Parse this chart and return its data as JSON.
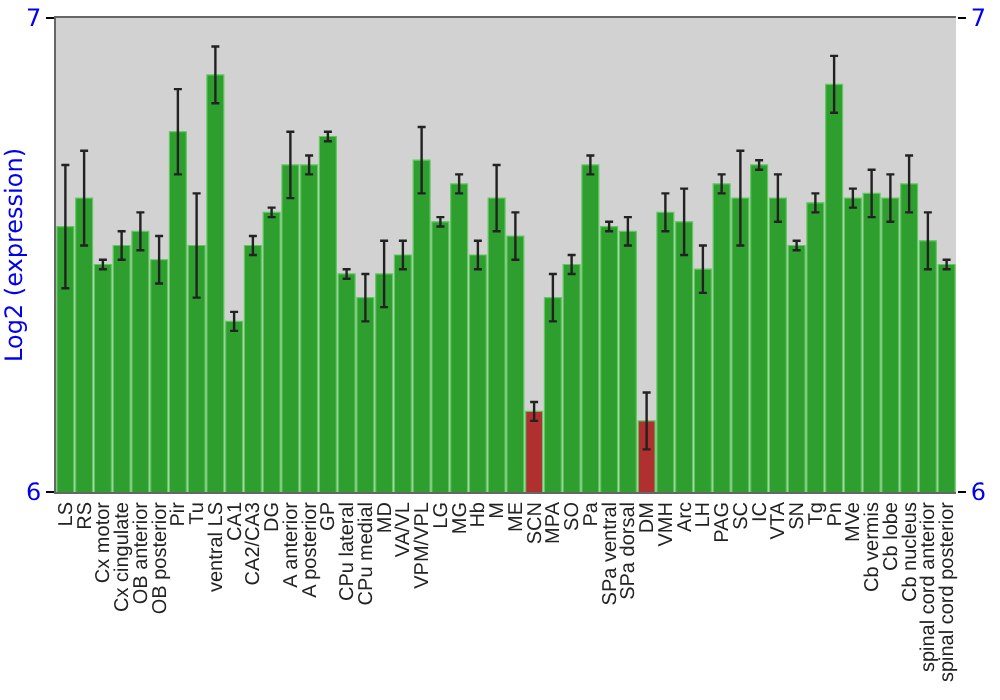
{
  "chart_data": {
    "type": "bar",
    "ylabel": "Log2 (expression)",
    "categories": [
      "LS",
      "RS",
      "Cx motor",
      "Cx cingulate",
      "OB anterior",
      "OB posterior",
      "Pir",
      "Tu",
      "ventral LS",
      "CA1",
      "CA2/CA3",
      "DG",
      "A anterior",
      "A posterior",
      "GP",
      "CPu lateral",
      "CPu medial",
      "MD",
      "VA/VL",
      "VPM/VPL",
      "LG",
      "MG",
      "Hb",
      "M",
      "ME",
      "SCN",
      "MPA",
      "SO",
      "Pa",
      "SPa ventral",
      "SPa dorsal",
      "DM",
      "VMH",
      "Arc",
      "LH",
      "PAG",
      "SC",
      "IC",
      "VTA",
      "SN",
      "Tg",
      "Pn",
      "MVe",
      "Cb vermis",
      "Cb lobe",
      "Cb nucleus",
      "spinal cord anterior",
      "spinal cord posterior"
    ],
    "values": [
      6.56,
      6.62,
      6.48,
      6.52,
      6.55,
      6.49,
      6.76,
      6.52,
      6.88,
      6.36,
      6.52,
      6.59,
      6.69,
      6.69,
      6.75,
      6.46,
      6.41,
      6.46,
      6.5,
      6.7,
      6.57,
      6.65,
      6.5,
      6.62,
      6.54,
      6.17,
      6.41,
      6.48,
      6.69,
      6.56,
      6.55,
      6.15,
      6.59,
      6.57,
      6.47,
      6.65,
      6.62,
      6.69,
      6.62,
      6.52,
      6.61,
      6.86,
      6.62,
      6.63,
      6.62,
      6.65,
      6.53,
      6.48
    ],
    "errors": [
      0.13,
      0.1,
      0.01,
      0.03,
      0.04,
      0.05,
      0.09,
      0.11,
      0.06,
      0.02,
      0.02,
      0.01,
      0.07,
      0.02,
      0.01,
      0.01,
      0.05,
      0.07,
      0.03,
      0.07,
      0.01,
      0.02,
      0.03,
      0.07,
      0.05,
      0.02,
      0.05,
      0.02,
      0.02,
      0.01,
      0.03,
      0.06,
      0.04,
      0.07,
      0.05,
      0.02,
      0.1,
      0.01,
      0.05,
      0.01,
      0.02,
      0.06,
      0.02,
      0.05,
      0.05,
      0.06,
      0.06,
      0.01
    ],
    "colors": [
      "#2e9e2e",
      "#2e9e2e",
      "#2e9e2e",
      "#2e9e2e",
      "#2e9e2e",
      "#2e9e2e",
      "#2e9e2e",
      "#2e9e2e",
      "#2e9e2e",
      "#2e9e2e",
      "#2e9e2e",
      "#2e9e2e",
      "#2e9e2e",
      "#2e9e2e",
      "#2e9e2e",
      "#2e9e2e",
      "#2e9e2e",
      "#2e9e2e",
      "#2e9e2e",
      "#2e9e2e",
      "#2e9e2e",
      "#2e9e2e",
      "#2e9e2e",
      "#2e9e2e",
      "#2e9e2e",
      "#b03030",
      "#2e9e2e",
      "#2e9e2e",
      "#2e9e2e",
      "#2e9e2e",
      "#2e9e2e",
      "#b03030",
      "#2e9e2e",
      "#2e9e2e",
      "#2e9e2e",
      "#2e9e2e",
      "#2e9e2e",
      "#2e9e2e",
      "#2e9e2e",
      "#2e9e2e",
      "#2e9e2e",
      "#2e9e2e",
      "#2e9e2e",
      "#2e9e2e",
      "#2e9e2e",
      "#2e9e2e",
      "#2e9e2e",
      "#2e9e2e"
    ],
    "ylim": [
      6,
      7
    ],
    "yticks": [
      6,
      7
    ],
    "y2lim": [
      6,
      7
    ],
    "y2ticks": [
      6,
      7
    ],
    "grid": false
  }
}
